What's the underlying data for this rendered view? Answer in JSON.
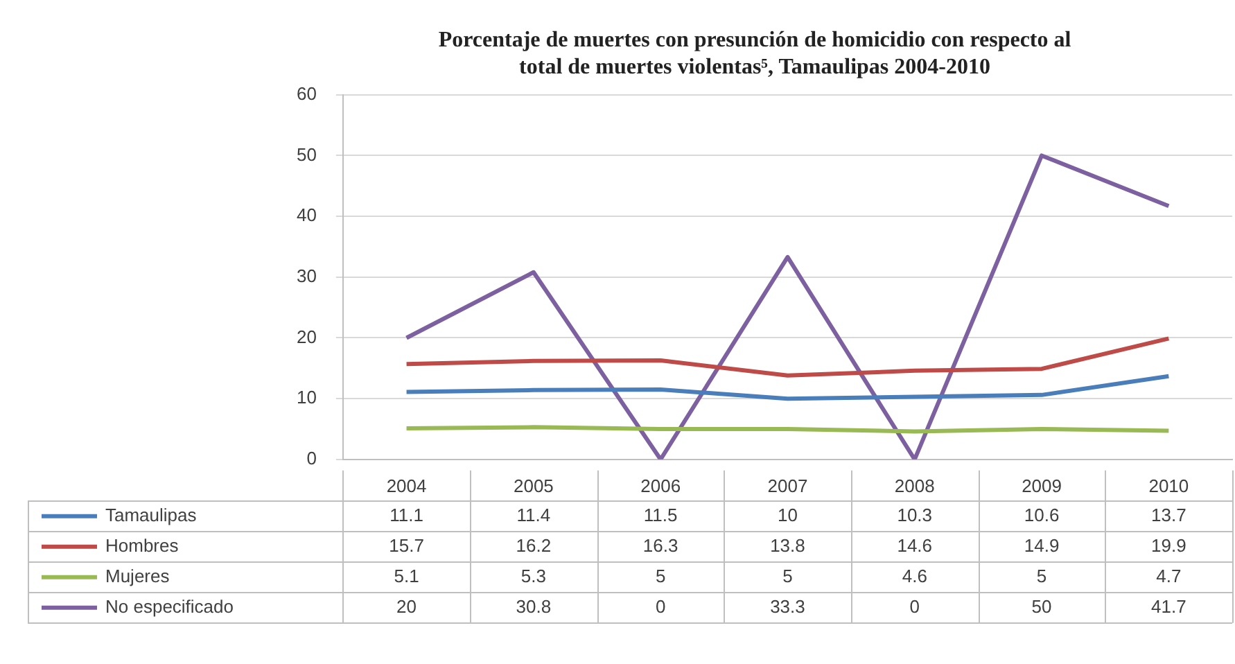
{
  "chart_data": {
    "type": "line",
    "title": "Porcentaje de muertes con presunción de homicidio con respecto al\ntotal de muertes violentas⁵, Tamaulipas 2004-2010",
    "categories": [
      "2004",
      "2005",
      "2006",
      "2007",
      "2008",
      "2009",
      "2010"
    ],
    "series": [
      {
        "name": "Tamaulipas",
        "color": "#4a7ebb",
        "values": [
          11.1,
          11.4,
          11.5,
          10,
          10.3,
          10.6,
          13.7
        ]
      },
      {
        "name": "Hombres",
        "color": "#be4b48",
        "values": [
          15.7,
          16.2,
          16.3,
          13.8,
          14.6,
          14.9,
          19.9
        ]
      },
      {
        "name": "Mujeres",
        "color": "#98b954",
        "values": [
          5.1,
          5.3,
          5,
          5,
          4.6,
          5,
          4.7
        ]
      },
      {
        "name": "No especificado",
        "color": "#7d60a0",
        "values": [
          20,
          30.8,
          0,
          33.3,
          0,
          50,
          41.7
        ]
      }
    ],
    "ylim": [
      0,
      60
    ],
    "yticks": [
      0,
      10,
      20,
      30,
      40,
      50,
      60
    ],
    "grid": "y",
    "legend": "bottom",
    "data_labels": true,
    "marker": "none",
    "line_style": "solid"
  }
}
